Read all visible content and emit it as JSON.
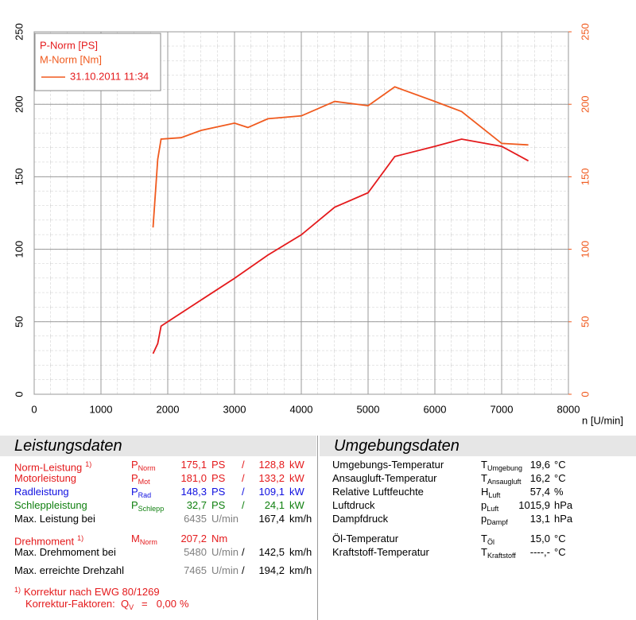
{
  "chart_data": {
    "type": "line",
    "legend_date": "31.10.2011 11:34",
    "x_label": "n [U/min]",
    "xlim": [
      0,
      8000
    ],
    "xticks": [
      0,
      1000,
      2000,
      3000,
      4000,
      5000,
      6000,
      7000,
      8000
    ],
    "ylim": [
      0,
      250
    ],
    "yticks": [
      0,
      50,
      100,
      150,
      200,
      250
    ],
    "y2lim": [
      0,
      250
    ],
    "y2ticks": [
      0,
      50,
      100,
      150,
      200,
      250
    ],
    "grid": true,
    "series": [
      {
        "name": "P-Norm [PS]",
        "color": "#e41a1c",
        "x": [
          1780,
          1850,
          1900,
          2000,
          2500,
          3000,
          3500,
          4000,
          4500,
          5000,
          5400,
          6000,
          6400,
          7000,
          7400
        ],
        "values": [
          28,
          35,
          47,
          50,
          65,
          80,
          96,
          110,
          129,
          139,
          164,
          171,
          176,
          171,
          161
        ]
      },
      {
        "name": "M-Norm [Nm]",
        "color": "#f05a1e",
        "axis": "y2",
        "x": [
          1780,
          1850,
          1900,
          2200,
          2500,
          3000,
          3200,
          3500,
          4000,
          4500,
          5000,
          5400,
          6000,
          6400,
          7000,
          7400
        ],
        "values": [
          115,
          162,
          176,
          177,
          182,
          187,
          184,
          190,
          192,
          202,
          199,
          212,
          202,
          195,
          173,
          172
        ]
      }
    ]
  },
  "leistungsdaten": {
    "title": "Leistungsdaten",
    "rows": [
      {
        "label": "Norm-Leistung",
        "note": "1)",
        "symbol": "P",
        "sub": "Norm",
        "value": "175,1",
        "unit": "PS",
        "sep": "/",
        "value2": "128,8",
        "unit2": "kW",
        "color": "#e41a1c"
      },
      {
        "label": "Motorleistung",
        "symbol": "P",
        "sub": "Mot",
        "value": "181,0",
        "unit": "PS",
        "sep": "/",
        "value2": "133,2",
        "unit2": "kW",
        "color": "#e41a1c"
      },
      {
        "label": "Radleistung",
        "symbol": "P",
        "sub": "Rad",
        "value": "148,3",
        "unit": "PS",
        "sep": "/",
        "value2": "109,1",
        "unit2": "kW",
        "color": "#1010e0"
      },
      {
        "label": "Schleppleistung",
        "symbol": "P",
        "sub": "Schlepp",
        "value": "32,7",
        "unit": "PS",
        "sep": "/",
        "value2": "24,1",
        "unit2": "kW",
        "color": "#108010"
      },
      {
        "label": "Max. Leistung bei",
        "value": "6435",
        "unit": "U/min",
        "value2": "167,4",
        "unit2": "km/h",
        "color": "#000000"
      },
      {
        "label": "Drehmoment",
        "note": "1)",
        "symbol": "M",
        "sub": "Norm",
        "value": "207,2",
        "unit": "Nm",
        "color": "#e41a1c"
      },
      {
        "label": "Max. Drehmoment bei",
        "value": "5480",
        "unit": "U/min",
        "sep": "/",
        "value2": "142,5",
        "unit2": "km/h",
        "color": "#000000"
      },
      {
        "label": "Max. erreichte Drehzahl",
        "value": "7465",
        "unit": "U/min",
        "sep": "/",
        "value2": "194,2",
        "unit2": "km/h",
        "color": "#000000"
      }
    ],
    "footnote": {
      "note": "1)",
      "text": "Korrektur nach EWG 80/1269",
      "factors": "Korrektur-Faktoren:",
      "symbol": "Q",
      "sub": "V",
      "eq": "=",
      "value": "0,00",
      "unit": "%"
    }
  },
  "umgebungsdaten": {
    "title": "Umgebungsdaten",
    "rows": [
      {
        "label": "Umgebungs-Temperatur",
        "symbol": "T",
        "sub": "Umgebung",
        "value": "19,6",
        "unit": "°C"
      },
      {
        "label": "Ansaugluft-Temperatur",
        "symbol": "T",
        "sub": "Ansaugluft",
        "value": "16,2",
        "unit": "°C"
      },
      {
        "label": "Relative Luftfeuchte",
        "symbol": "H",
        "sub": "Luft",
        "value": "57,4",
        "unit": "%"
      },
      {
        "label": "Luftdruck",
        "symbol": "p",
        "sub": "Luft",
        "value": "1015,9",
        "unit": "hPa"
      },
      {
        "label": "Dampfdruck",
        "symbol": "p",
        "sub": "Dampf",
        "value": "13,1",
        "unit": "hPa"
      },
      {
        "label": "Öl-Temperatur",
        "symbol": "T",
        "sub": "Öl",
        "value": "15,0",
        "unit": "°C"
      },
      {
        "label": "Kraftstoff-Temperatur",
        "symbol": "T",
        "sub": "Kraftstoff",
        "value": "----,-",
        "unit": "°C"
      }
    ]
  }
}
